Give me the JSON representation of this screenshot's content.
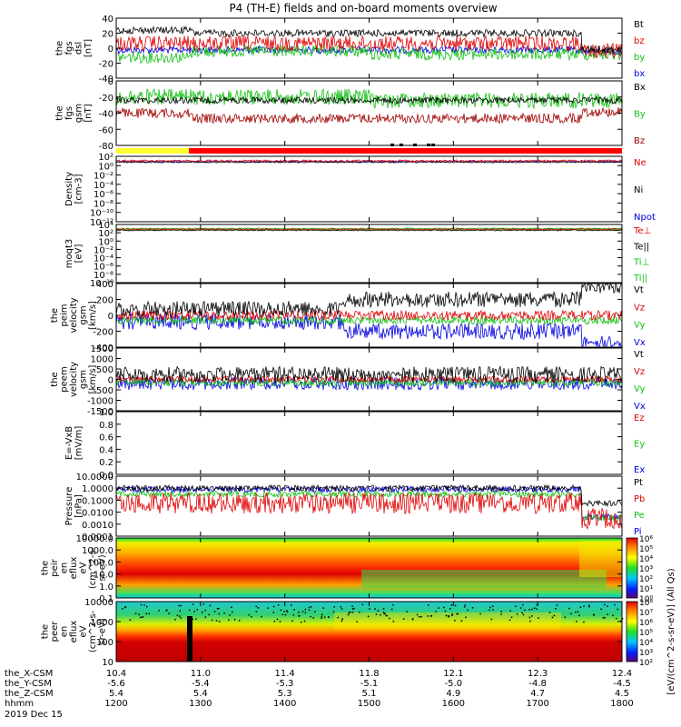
{
  "title": "P4 (TH-E) fields and on-board moments overview",
  "chart_data": {
    "type": "line",
    "x_ticks": [
      "1200",
      "1300",
      "1400",
      "1500",
      "1600",
      "1700",
      "1800"
    ],
    "ephemeris": [
      {
        "name": "the_X-CSM",
        "values": [
          "10.4",
          "11.0",
          "11.4",
          "11.8",
          "12.1",
          "12.3",
          "12.4"
        ]
      },
      {
        "name": "the_Y-CSM",
        "values": [
          "-5.6",
          "-5.4",
          "-5.3",
          "-5.1",
          "-5.0",
          "-4.8",
          "-4.5"
        ]
      },
      {
        "name": "the_Z-CSM",
        "values": [
          "5.4",
          "5.4",
          "5.3",
          "5.1",
          "4.9",
          "4.7",
          "4.5"
        ]
      },
      {
        "name": "hhmm",
        "values": [
          "1200",
          "1300",
          "1400",
          "1500",
          "1600",
          "1700",
          "1800"
        ]
      }
    ],
    "date_label": "2019 Dec 15",
    "panels": [
      {
        "id": "fgs_dsl",
        "ylabel": [
          "the",
          "fgs",
          "dsl",
          "[nT]"
        ],
        "yticks": [
          "40",
          "20",
          "0",
          "-20",
          "-40"
        ],
        "ylim": [
          -40,
          40
        ],
        "legend": [
          {
            "label": "Bt",
            "color": "#000000"
          },
          {
            "label": "bz",
            "color": "#e00000"
          },
          {
            "label": "by",
            "color": "#10c010"
          },
          {
            "label": "bx",
            "color": "#0000e0"
          }
        ]
      },
      {
        "id": "fgs_gsm",
        "ylabel": [
          "the",
          "fgs",
          "gsm",
          "[nT]"
        ],
        "yticks": [
          "0",
          "-20",
          "-40",
          "-60",
          "-80"
        ],
        "ylim": [
          -90,
          10
        ],
        "legend": [
          {
            "label": "Bx",
            "color": "#000000"
          },
          {
            "label": "By",
            "color": "#10c010"
          },
          {
            "label": "Bz",
            "color": "#a00000"
          }
        ]
      },
      {
        "id": "density",
        "ylabel": [
          "Density",
          "[cm-3]"
        ],
        "yticks": [
          "10²",
          "10⁰",
          "10⁻²",
          "10⁻⁴",
          "10⁻⁶",
          "10⁻⁸",
          "10⁻¹⁰",
          "10⁻¹²"
        ],
        "ylim": [
          1e-12,
          100
        ],
        "log": true,
        "legend": [
          {
            "label": "Ne",
            "color": "#e00000"
          },
          {
            "label": "Ni",
            "color": "#000000"
          },
          {
            "label": "Npot",
            "color": "#0000e0"
          }
        ]
      },
      {
        "id": "temperature",
        "ylabel": [
          "moqt3",
          "[eV]"
        ],
        "yticks": [
          "10⁴",
          "10²",
          "10⁰",
          "10⁻²",
          "10⁻⁴",
          "10⁻⁶",
          "10⁻⁸",
          "10⁻¹⁰"
        ],
        "ylim": [
          1e-10,
          10000.0
        ],
        "log": true,
        "legend": [
          {
            "label": "Te⊥",
            "color": "#e00000"
          },
          {
            "label": "Te||",
            "color": "#000000"
          },
          {
            "label": "Ti⊥",
            "color": "#10c010"
          },
          {
            "label": "Ti||",
            "color": "#10c010"
          }
        ]
      },
      {
        "id": "ion_velocity",
        "ylabel": [
          "the",
          "peim",
          "velocity",
          "gsm",
          "[km/s]"
        ],
        "yticks": [
          "400",
          "200",
          "0",
          "-200",
          "-400"
        ],
        "ylim": [
          -400,
          400
        ],
        "legend": [
          {
            "label": "Vt",
            "color": "#000000"
          },
          {
            "label": "Vz",
            "color": "#e00000"
          },
          {
            "label": "Vy",
            "color": "#10c010"
          },
          {
            "label": "Vx",
            "color": "#0000e0"
          }
        ]
      },
      {
        "id": "electron_velocity",
        "ylabel": [
          "the",
          "peem",
          "velocity",
          "gsm",
          "[km/s]"
        ],
        "yticks": [
          "1500",
          "1000",
          "500",
          "0",
          "-500",
          "-1000",
          "-1500"
        ],
        "ylim": [
          -1500,
          1500
        ],
        "legend": [
          {
            "label": "Vt",
            "color": "#000000"
          },
          {
            "label": "Vz",
            "color": "#e00000"
          },
          {
            "label": "Vy",
            "color": "#10c010"
          },
          {
            "label": "Vx",
            "color": "#0000e0"
          }
        ]
      },
      {
        "id": "efield",
        "ylabel": [
          "E=-VxB",
          "[mV/m]"
        ],
        "yticks": [
          "1.0",
          "0.8",
          "0.6",
          "0.4",
          "0.2",
          "0.0"
        ],
        "ylim": [
          0,
          1
        ],
        "legend": [
          {
            "label": "Ez",
            "color": "#e00000"
          },
          {
            "label": "Ey",
            "color": "#10c010"
          },
          {
            "label": "Ex",
            "color": "#0000e0"
          }
        ]
      },
      {
        "id": "pressure",
        "ylabel": [
          "Pressure",
          "[nPa]"
        ],
        "yticks": [
          "10.0000",
          "1.0000",
          "0.1000",
          "0.0100",
          "0.0010",
          "0.0001"
        ],
        "ylim": [
          0.0001,
          10
        ],
        "log": true,
        "legend": [
          {
            "label": "Pt",
            "color": "#000000"
          },
          {
            "label": "Pb",
            "color": "#e00000"
          },
          {
            "label": "Pe",
            "color": "#10c010"
          },
          {
            "label": "Pi",
            "color": "#0000e0"
          }
        ]
      },
      {
        "id": "ion_spectrogram",
        "ylabel": [
          "the",
          "peir",
          "en",
          "eflux",
          "eV",
          "(cm^2-s-",
          "sr-eV)"
        ],
        "yticks": [
          "10000.0",
          "1000.0",
          "100.0",
          "10.0",
          "1.0",
          "0.1"
        ],
        "ylim": [
          0.1,
          30000
        ],
        "log": true
      },
      {
        "id": "electron_spectrogram",
        "ylabel": [
          "the",
          "peer",
          "en",
          "eflux",
          "eV",
          "(cm^2-s-",
          "sr-eV)"
        ],
        "yticks": [
          "10000",
          "1000",
          "100",
          "10"
        ],
        "ylim": [
          5,
          30000
        ],
        "log": true
      }
    ],
    "colorbars": [
      {
        "id": "ion_cb",
        "ticks": [
          "10⁶",
          "10⁵",
          "10⁴",
          "10³",
          "10²",
          "10¹",
          "10⁰"
        ]
      },
      {
        "id": "electron_cb",
        "ticks": [
          "10⁸",
          "10⁷",
          "10⁶",
          "10⁵",
          "10⁴",
          "10³",
          "10²"
        ]
      }
    ],
    "colorbar_label": "[eV/(cm^2-s-sr-eV)] (All Qs)"
  }
}
